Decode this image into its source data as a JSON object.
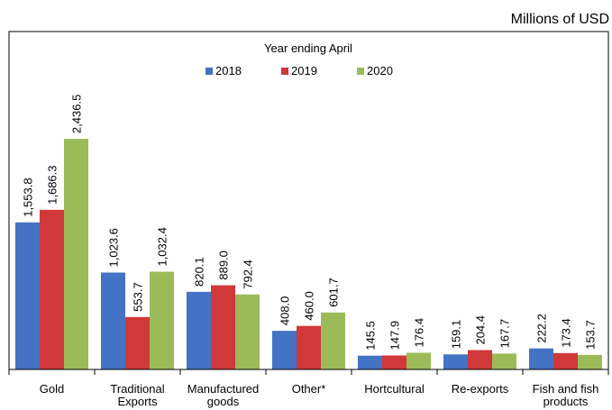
{
  "chart_data": {
    "type": "bar",
    "subtitle": "Millions of USD",
    "legend_title": "Year ending April",
    "categories": [
      "Gold",
      "Traditional Exports",
      "Manufactured goods",
      "Other*",
      "Hortcultural",
      "Re-exports",
      "Fish and fish products"
    ],
    "series": [
      {
        "name": "2018",
        "color": "#4472c4",
        "values": [
          1553.8,
          1023.6,
          820.1,
          408.0,
          145.5,
          159.1,
          222.2
        ],
        "value_labels": [
          "1,553.8",
          "1,023.6",
          "820.1",
          "408.0",
          "145.5",
          "159.1",
          "222.2"
        ]
      },
      {
        "name": "2019",
        "color": "#d0383a",
        "values": [
          1686.3,
          553.7,
          889.0,
          460.0,
          147.9,
          204.4,
          173.4
        ],
        "value_labels": [
          "1,686.3",
          "553.7",
          "889.0",
          "460.0",
          "147.9",
          "204.4",
          "173.4"
        ]
      },
      {
        "name": "2020",
        "color": "#9bbb59",
        "values": [
          2436.5,
          1032.4,
          792.4,
          601.7,
          176.4,
          167.7,
          153.7
        ],
        "value_labels": [
          "2,436.5",
          "1,032.4",
          "792.4",
          "601.7",
          "176.4",
          "167.7",
          "153.7"
        ]
      }
    ],
    "ylim": [
      0,
      3570
    ],
    "legend": "top"
  }
}
